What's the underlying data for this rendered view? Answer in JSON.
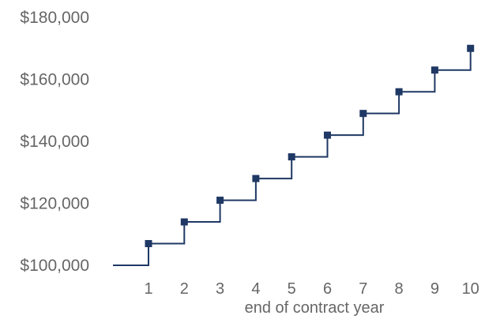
{
  "chart_data": {
    "type": "line",
    "step": "pre",
    "title": "",
    "xlabel": "end of contract year",
    "ylabel": "",
    "x": [
      1,
      2,
      3,
      4,
      5,
      6,
      7,
      8,
      9,
      10
    ],
    "series": [
      {
        "start_value": 100000,
        "values": [
          107000,
          114000,
          121000,
          128000,
          135000,
          142000,
          149000,
          156000,
          163000,
          170000
        ],
        "color": "#1f3864"
      }
    ],
    "yticks": [
      100000,
      120000,
      140000,
      160000,
      180000
    ],
    "ytick_labels": [
      "$100,000",
      "$120,000",
      "$140,000",
      "$160,000",
      "$180,000"
    ],
    "xticks": [
      1,
      2,
      3,
      4,
      5,
      6,
      7,
      8,
      9,
      10
    ],
    "xtick_labels": [
      "1",
      "2",
      "3",
      "4",
      "5",
      "6",
      "7",
      "8",
      "9",
      "10"
    ],
    "ylim": [
      100000,
      180000
    ],
    "grid": false
  }
}
